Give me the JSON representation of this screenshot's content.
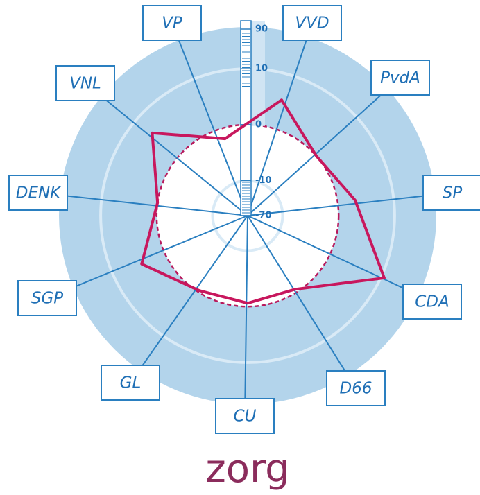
{
  "chart_data": {
    "type": "radar",
    "title": "zorg",
    "categories": [
      "VP",
      "VVD",
      "PvdA",
      "SP",
      "CDA",
      "D66",
      "CU",
      "GL",
      "SGP",
      "DENK",
      "VNL"
    ],
    "series": [
      {
        "color": "#c8175d",
        "values": [
          2,
          0,
          0.8,
          12,
          -0.1,
          -0.1,
          -0.05,
          1.5,
          0,
          2.9,
          -0.4
        ]
      }
    ],
    "ylim": [
      -70,
      90
    ],
    "yticks": [
      90,
      10,
      0,
      -10,
      -70
    ],
    "yscale": "symlog",
    "grid": true
  }
}
